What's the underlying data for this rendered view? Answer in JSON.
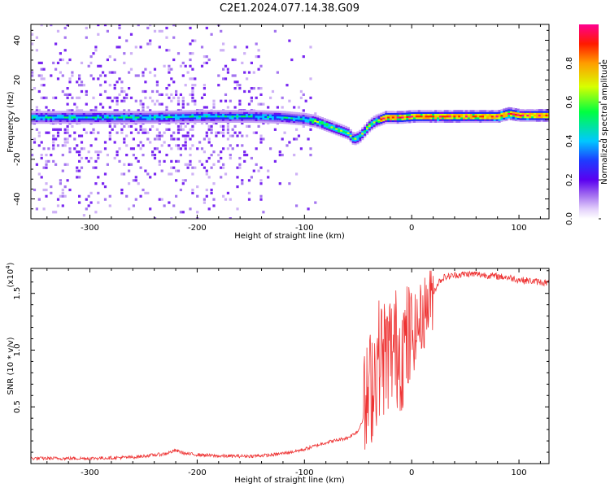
{
  "title": "C2E1.2024.077.14.38.G09",
  "chart_data": [
    {
      "type": "heatmap",
      "xlabel": "Height of straight line (km)",
      "ylabel": "Frequency (Hz)",
      "xlim": [
        -355,
        128
      ],
      "ylim": [
        -50,
        48
      ],
      "xticks": [
        -300,
        -200,
        -100,
        0,
        100
      ],
      "yticks": [
        -40,
        -20,
        0,
        20,
        40
      ],
      "xtick_labels": [
        "-300",
        "-200",
        "-100",
        "0",
        "100"
      ],
      "ytick_labels": [
        "-40",
        "-20",
        "0",
        "20",
        "40"
      ],
      "colorbar": {
        "label": "Normalized spectral amplitude",
        "range": [
          0.0,
          1.0
        ],
        "ticks": [
          0.0,
          0.2,
          0.4,
          0.6,
          0.8
        ],
        "tick_labels": [
          "0.0",
          "0.2",
          "0.4",
          "0.6",
          "0.8"
        ],
        "colors": [
          "#ffffff",
          "#c9a8f5",
          "#9a66ee",
          "#6a0ff0",
          "#1f2bff",
          "#00c8ff",
          "#00ff55",
          "#d2ff00",
          "#ffb300",
          "#ff2200",
          "#ff0099"
        ]
      },
      "ridge": {
        "x": [
          -355,
          -300,
          -250,
          -200,
          -150,
          -120,
          -100,
          -90,
          -80,
          -70,
          -60,
          -55,
          -50,
          -45,
          -40,
          -35,
          -30,
          -25,
          -20,
          -10,
          0,
          10,
          20,
          50,
          80,
          90,
          100,
          128
        ],
        "freq": [
          1,
          1,
          1,
          1.5,
          1.5,
          1,
          0,
          -1,
          -3,
          -5,
          -7,
          -10,
          -9,
          -6,
          -3,
          -1,
          0,
          1,
          1,
          1,
          1.5,
          1.5,
          1.5,
          1.5,
          1.5,
          3,
          2,
          2
        ]
      }
    },
    {
      "type": "line",
      "xlabel": "Height of straight line (km)",
      "ylabel": "SNR (10 * v/v)",
      "scale_label": "(x10",
      "scale_exponent": "4",
      "xlim": [
        -355,
        128
      ],
      "ylim": [
        0,
        1.72
      ],
      "xticks": [
        -300,
        -200,
        -100,
        0,
        100
      ],
      "yticks": [
        0.5,
        1.0,
        1.5
      ],
      "xtick_labels": [
        "-300",
        "-200",
        "-100",
        "0",
        "100"
      ],
      "ytick_labels": [
        "0.5",
        "1.0",
        "1.5"
      ],
      "series_color": "#ee3333",
      "envelope": {
        "x": [
          -355,
          -300,
          -260,
          -230,
          -220,
          -210,
          -180,
          -150,
          -130,
          -110,
          -100,
          -90,
          -80,
          -70,
          -60,
          -50,
          -45,
          -40,
          -35,
          -30,
          -25,
          -20,
          -15,
          -10,
          -5,
          0,
          5,
          10,
          15,
          20,
          25,
          30,
          40,
          50,
          60,
          70,
          80,
          90,
          100,
          110,
          120,
          128
        ],
        "y": [
          0.04,
          0.04,
          0.05,
          0.08,
          0.11,
          0.08,
          0.06,
          0.06,
          0.07,
          0.1,
          0.12,
          0.15,
          0.18,
          0.2,
          0.22,
          0.28,
          0.4,
          0.6,
          0.8,
          0.95,
          0.95,
          1.0,
          1.02,
          1.0,
          1.05,
          1.1,
          1.2,
          1.3,
          1.4,
          1.5,
          1.6,
          1.64,
          1.66,
          1.67,
          1.67,
          1.66,
          1.65,
          1.64,
          1.62,
          1.61,
          1.6,
          1.59
        ]
      }
    }
  ]
}
